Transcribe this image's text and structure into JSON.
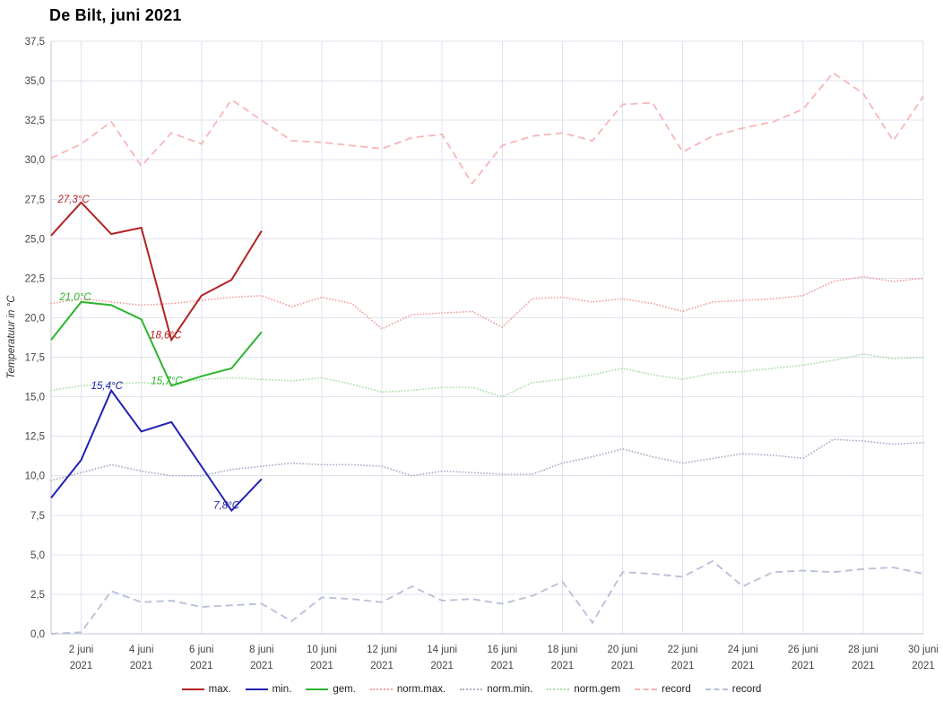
{
  "chart_data": {
    "type": "line",
    "title": "De Bilt, juni 2021",
    "ylabel": "Temperatuur in °C",
    "xlim": [
      1,
      30
    ],
    "ylim": [
      0,
      37.5
    ],
    "grid": true,
    "legend_position": "bottom",
    "y_ticks": [
      {
        "value": 0,
        "label": "0,0"
      },
      {
        "value": 2.5,
        "label": "2,5"
      },
      {
        "value": 5,
        "label": "5,0"
      },
      {
        "value": 7.5,
        "label": "7,5"
      },
      {
        "value": 10,
        "label": "10,0"
      },
      {
        "value": 12.5,
        "label": "12,5"
      },
      {
        "value": 15,
        "label": "15,0"
      },
      {
        "value": 17.5,
        "label": "17,5"
      },
      {
        "value": 20,
        "label": "20,0"
      },
      {
        "value": 22.5,
        "label": "22,5"
      },
      {
        "value": 25,
        "label": "25,0"
      },
      {
        "value": 27.5,
        "label": "27,5"
      },
      {
        "value": 30,
        "label": "30,0"
      },
      {
        "value": 32.5,
        "label": "32,5"
      },
      {
        "value": 35,
        "label": "35,0"
      },
      {
        "value": 37.5,
        "label": "37,5"
      }
    ],
    "x_ticks": [
      {
        "day": 2,
        "line1": "2 juni",
        "line2": "2021"
      },
      {
        "day": 4,
        "line1": "4 juni",
        "line2": "2021"
      },
      {
        "day": 6,
        "line1": "6 juni",
        "line2": "2021"
      },
      {
        "day": 8,
        "line1": "8 juni",
        "line2": "2021"
      },
      {
        "day": 10,
        "line1": "10 juni",
        "line2": "2021"
      },
      {
        "day": 12,
        "line1": "12 juni",
        "line2": "2021"
      },
      {
        "day": 14,
        "line1": "14 juni",
        "line2": "2021"
      },
      {
        "day": 16,
        "line1": "16 juni",
        "line2": "2021"
      },
      {
        "day": 18,
        "line1": "18 juni",
        "line2": "2021"
      },
      {
        "day": 20,
        "line1": "20 juni",
        "line2": "2021"
      },
      {
        "day": 22,
        "line1": "22 juni",
        "line2": "2021"
      },
      {
        "day": 24,
        "line1": "24 juni",
        "line2": "2021"
      },
      {
        "day": 26,
        "line1": "26 juni",
        "line2": "2021"
      },
      {
        "day": 28,
        "line1": "28 juni",
        "line2": "2021"
      },
      {
        "day": 30,
        "line1": "30 juni",
        "line2": "2021"
      }
    ],
    "series": [
      {
        "id": "max",
        "name": "max.",
        "color": "#b22222",
        "style": "solid",
        "start_day": 1,
        "values": [
          25.2,
          27.3,
          25.3,
          25.7,
          18.6,
          21.4,
          22.4,
          25.5
        ]
      },
      {
        "id": "min",
        "name": "min.",
        "color": "#2222b2",
        "style": "solid",
        "start_day": 1,
        "values": [
          8.6,
          11.0,
          15.4,
          12.8,
          13.4,
          10.6,
          7.8,
          9.8
        ]
      },
      {
        "id": "gem",
        "name": "gem.",
        "color": "#2db52d",
        "style": "solid",
        "start_day": 1,
        "values": [
          18.6,
          21.0,
          20.8,
          19.9,
          15.7,
          16.3,
          16.8,
          19.1
        ]
      },
      {
        "id": "norm_max",
        "name": "norm.max.",
        "color": "#f2a2a2",
        "style": "dotted",
        "start_day": 1,
        "values": [
          20.9,
          21.2,
          21.0,
          20.8,
          20.9,
          21.1,
          21.3,
          21.4,
          20.7,
          21.3,
          20.9,
          19.3,
          20.2,
          20.3,
          20.4,
          19.4,
          21.2,
          21.3,
          21.0,
          21.2,
          20.9,
          20.4,
          21.0,
          21.1,
          21.2,
          21.4,
          22.3,
          22.6,
          22.3,
          22.5
        ]
      },
      {
        "id": "norm_min",
        "name": "norm.min.",
        "color": "#a9afc9",
        "style": "dotted",
        "start_day": 1,
        "values": [
          9.7,
          10.2,
          10.7,
          10.3,
          10.0,
          10.0,
          10.4,
          10.6,
          10.8,
          10.7,
          10.7,
          10.6,
          10.0,
          10.3,
          10.2,
          10.1,
          10.1,
          10.8,
          11.2,
          11.7,
          11.2,
          10.8,
          11.1,
          11.4,
          11.3,
          11.1,
          12.3,
          12.2,
          12.0,
          12.1
        ]
      },
      {
        "id": "norm_gem",
        "name": "norm.gem",
        "color": "#aadfaa",
        "style": "dotted",
        "start_day": 1,
        "values": [
          15.4,
          15.7,
          15.8,
          15.9,
          15.8,
          16.1,
          16.2,
          16.1,
          16.0,
          16.2,
          15.8,
          15.3,
          15.4,
          15.6,
          15.6,
          15.0,
          15.9,
          16.1,
          16.4,
          16.8,
          16.4,
          16.1,
          16.5,
          16.6,
          16.8,
          17.0,
          17.3,
          17.7,
          17.4,
          17.5
        ]
      },
      {
        "id": "record_high",
        "name": "record",
        "color": "#f6b6b6",
        "style": "dashed",
        "start_day": 1,
        "values": [
          30.1,
          31.0,
          32.4,
          29.6,
          31.7,
          31.0,
          33.8,
          32.5,
          31.2,
          31.1,
          30.9,
          30.7,
          31.4,
          31.6,
          28.5,
          30.9,
          31.5,
          31.7,
          31.2,
          33.5,
          33.6,
          30.5,
          31.5,
          32.0,
          32.4,
          33.2,
          35.5,
          34.2,
          31.2,
          34.0
        ]
      },
      {
        "id": "record_low",
        "name": "record",
        "color": "#b6bed9",
        "style": "dashed",
        "start_day": 1,
        "values": [
          0.0,
          0.1,
          2.7,
          2.0,
          2.1,
          1.7,
          1.8,
          1.9,
          0.8,
          2.3,
          2.2,
          2.0,
          3.0,
          2.1,
          2.2,
          1.9,
          2.4,
          3.3,
          0.7,
          3.9,
          3.8,
          3.6,
          4.6,
          3.0,
          3.9,
          4.0,
          3.9,
          4.1,
          4.2,
          3.8
        ]
      }
    ],
    "annotations": [
      {
        "text": "27,3°C",
        "series": "max",
        "day": 1.22,
        "value": 27.3
      },
      {
        "text": "18,6°C",
        "series": "max",
        "day": 4.28,
        "value": 18.7
      },
      {
        "text": "21,0°C",
        "series": "gem",
        "day": 1.28,
        "value": 21.1
      },
      {
        "text": "15,7°C",
        "series": "gem",
        "day": 4.32,
        "value": 15.8
      },
      {
        "text": "15,4°C",
        "series": "min",
        "day": 2.33,
        "value": 15.5
      },
      {
        "text": "7,8°C",
        "series": "min",
        "day": 6.4,
        "value": 7.9
      }
    ]
  }
}
